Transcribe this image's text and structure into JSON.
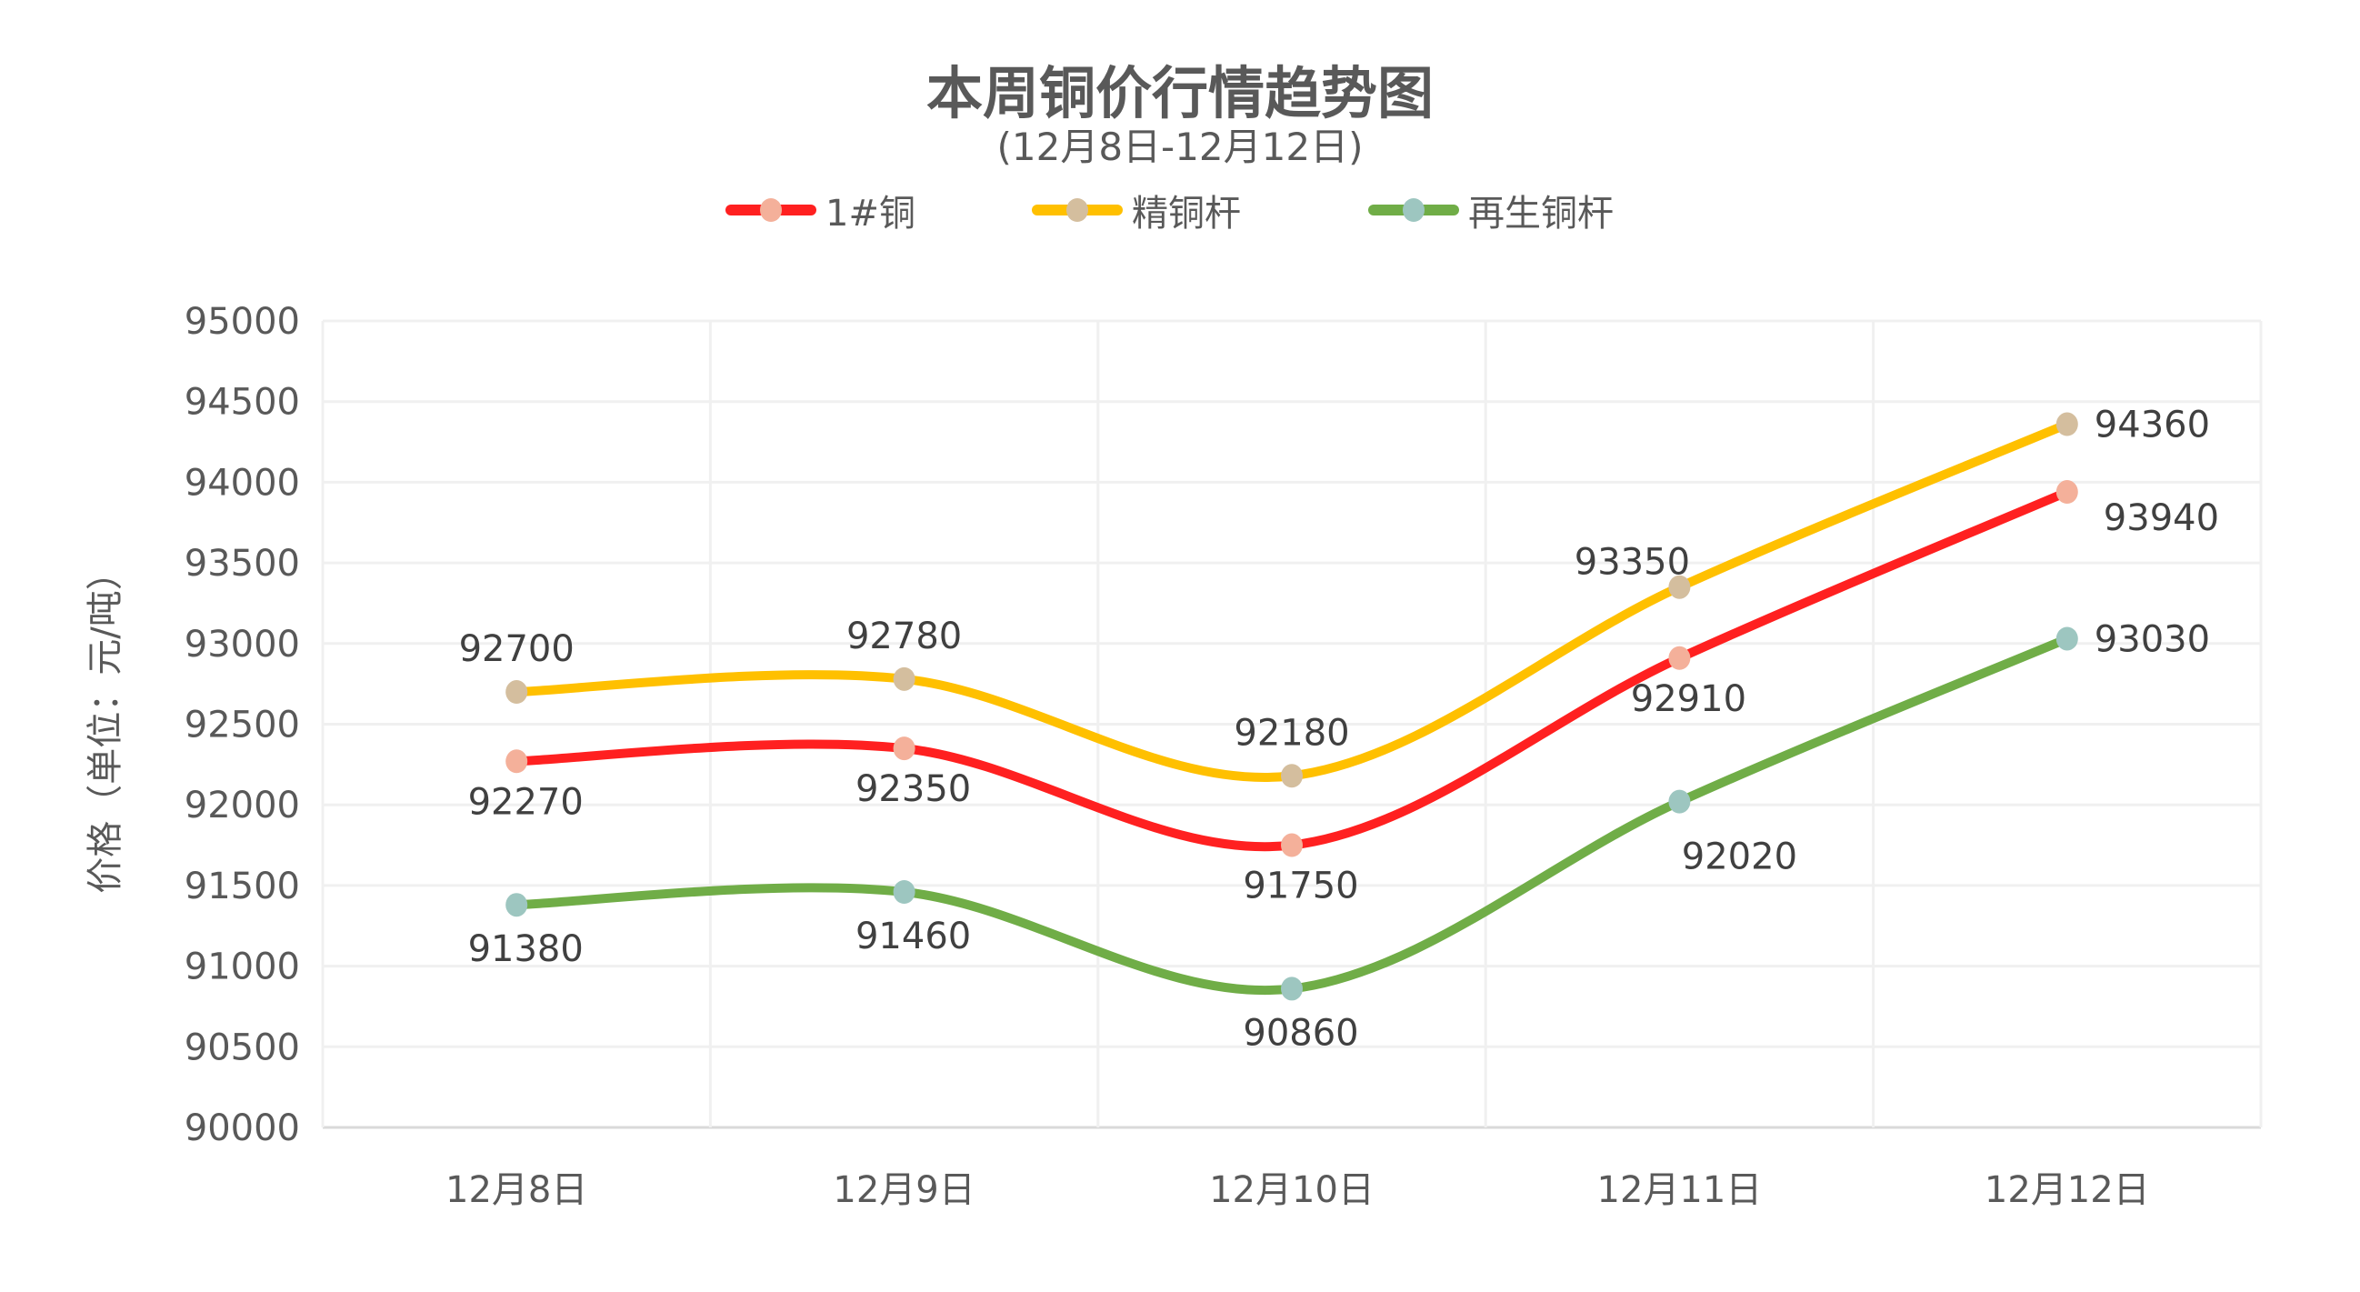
{
  "header": {
    "title": "本周铜价行情趋势图",
    "subtitle": "(12月8日-12月12日)"
  },
  "legend": [
    {
      "label": "1#铜",
      "line_color": "#FF2020",
      "marker_color": "#F4B09A"
    },
    {
      "label": "精铜杆",
      "line_color": "#FFC000",
      "marker_color": "#D4BE9E"
    },
    {
      "label": "再生铜杆",
      "line_color": "#70AD47",
      "marker_color": "#9DC6C0"
    }
  ],
  "axis": {
    "ylabel": "价格（单位：元/吨）"
  },
  "chart_data": {
    "type": "line",
    "title": "本周铜价行情趋势图",
    "subtitle": "(12月8日-12月12日)",
    "xlabel": "",
    "ylabel": "价格（单位：元/吨）",
    "categories": [
      "12月8日",
      "12月9日",
      "12月10日",
      "12月11日",
      "12月12日"
    ],
    "ylim": [
      90000,
      95000
    ],
    "yticks": [
      90000,
      90500,
      91000,
      91500,
      92000,
      92500,
      93000,
      93500,
      94000,
      94500,
      95000
    ],
    "grid": true,
    "smooth": true,
    "legend_position": "top",
    "series": [
      {
        "name": "1#铜",
        "values": [
          92270,
          92350,
          91750,
          92910,
          93940
        ],
        "line_color": "#FF2020",
        "marker_color": "#F4B09A",
        "label_pos": [
          "below",
          "below",
          "below",
          "below",
          "right-below"
        ]
      },
      {
        "name": "精铜杆",
        "values": [
          92700,
          92780,
          92180,
          93350,
          94360
        ],
        "line_color": "#FFC000",
        "marker_color": "#D4BE9E",
        "label_pos": [
          "above",
          "above",
          "above",
          "above-left",
          "right"
        ]
      },
      {
        "name": "再生铜杆",
        "values": [
          91380,
          91460,
          90860,
          92020,
          93030
        ],
        "line_color": "#70AD47",
        "marker_color": "#9DC6C0",
        "label_pos": [
          "below",
          "below",
          "below",
          "below-right",
          "right"
        ]
      }
    ]
  }
}
